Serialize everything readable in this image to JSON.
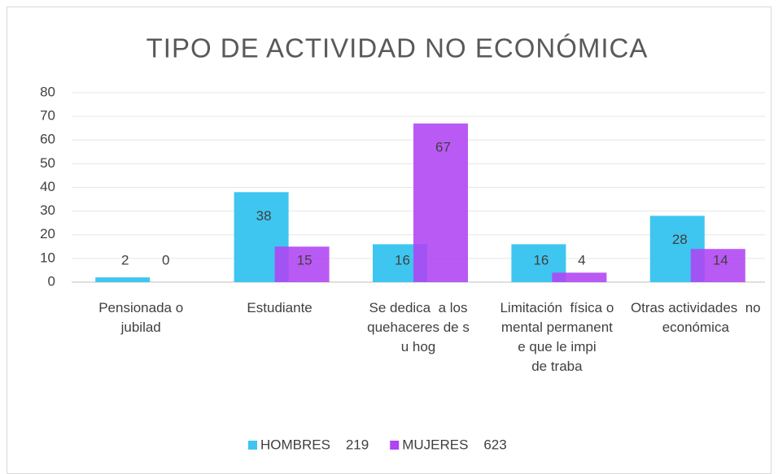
{
  "chart_data": {
    "type": "bar",
    "title": "TIPO DE ACTIVIDAD NO ECONÓMICA",
    "categories": [
      "Pensionada o jubilada",
      "Estudiante",
      "Se dedica  a los quehaceres de su hogar",
      "Limitación  física o mental permanente que le impide trabajar",
      "Otras actividades  no económicas"
    ],
    "series": [
      {
        "name": "HOMBRES    219",
        "color": "#3ec6f0",
        "values": [
          2,
          38,
          16,
          16,
          28
        ]
      },
      {
        "name": "MUJERES    623",
        "color": "#b043f2",
        "values": [
          0,
          15,
          67,
          4,
          14
        ]
      }
    ],
    "ylim": [
      0,
      80
    ],
    "yticks": [
      0,
      10,
      20,
      30,
      40,
      50,
      60,
      70,
      80
    ],
    "grid": true,
    "legend": "bottom"
  }
}
